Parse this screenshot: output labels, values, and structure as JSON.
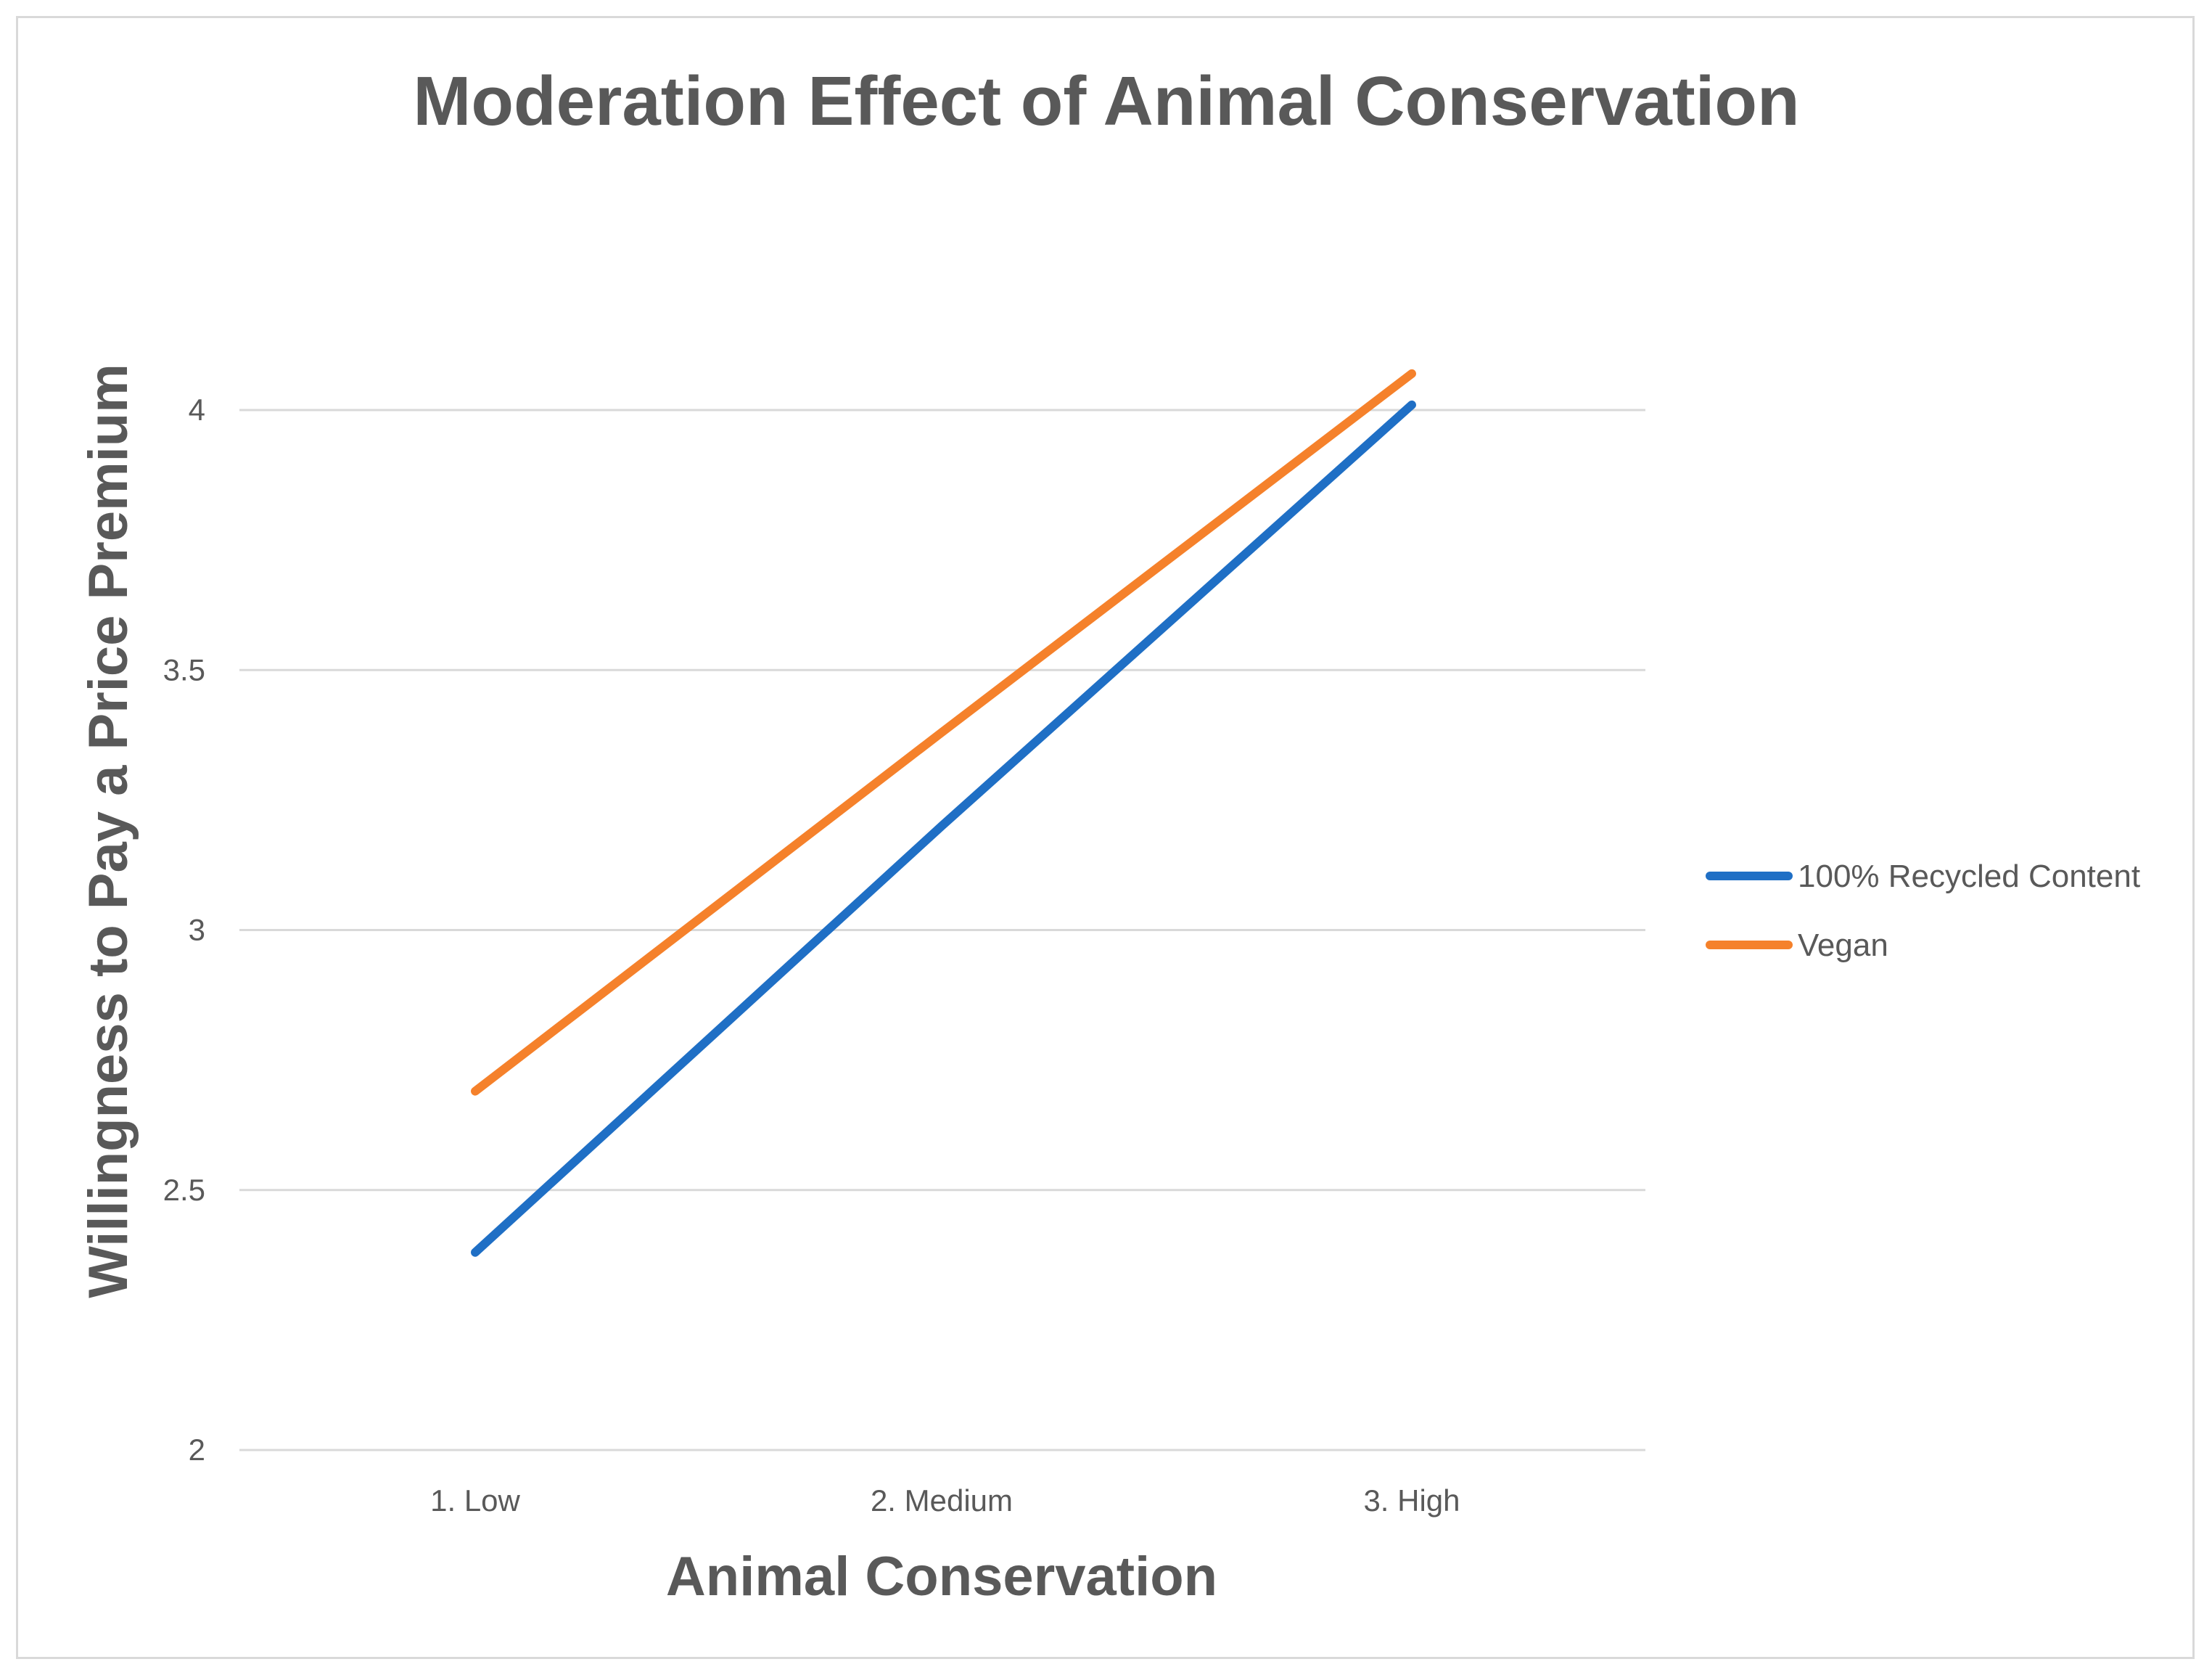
{
  "chart_data": {
    "type": "line",
    "title": "Moderation Effect of Animal Conservation",
    "xlabel": "Animal Conservation",
    "ylabel": "Willingness to Pay a Price Premium",
    "categories": [
      "1. Low",
      "2. Medium",
      "3. High"
    ],
    "ylim": [
      2,
      4
    ],
    "yticks": [
      2,
      2.5,
      3,
      3.5,
      4
    ],
    "ytick_labels": [
      "2",
      "2.5",
      "3",
      "3.5",
      "4"
    ],
    "grid": true,
    "legend_position": "right",
    "series": [
      {
        "name": "100% Recycled Content",
        "values": [
          2.38,
          3.2,
          4.01
        ],
        "color": "#1f6fc5"
      },
      {
        "name": "Vegan",
        "values": [
          2.69,
          3.38,
          4.07
        ],
        "color": "#f5812b"
      }
    ]
  }
}
